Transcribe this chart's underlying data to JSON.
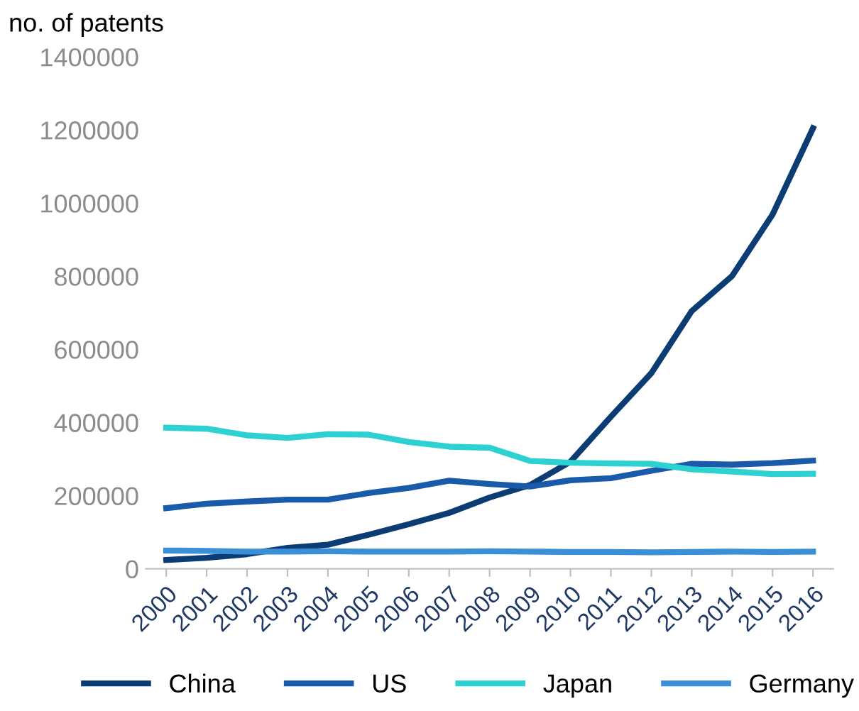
{
  "chart_data": {
    "type": "line",
    "ylabel": "no. of patents",
    "categories": [
      "2000",
      "2001",
      "2002",
      "2003",
      "2004",
      "2005",
      "2006",
      "2007",
      "2008",
      "2009",
      "2010",
      "2011",
      "2012",
      "2013",
      "2014",
      "2015",
      "2016"
    ],
    "series": [
      {
        "name": "China",
        "color": "#0b3c73",
        "values": [
          24000,
          30000,
          40000,
          57000,
          66000,
          93000,
          122000,
          153000,
          195000,
          229000,
          293000,
          416000,
          535000,
          705000,
          801000,
          969000,
          1205000
        ]
      },
      {
        "name": "US",
        "color": "#1a5aaa",
        "values": [
          166000,
          178000,
          184000,
          189000,
          189000,
          207000,
          221000,
          241000,
          232000,
          225000,
          242000,
          248000,
          268000,
          287000,
          285000,
          289000,
          296000
        ]
      },
      {
        "name": "Japan",
        "color": "#2ed1d1",
        "values": [
          386000,
          383000,
          365000,
          358000,
          368000,
          367000,
          347000,
          334000,
          331000,
          295000,
          290000,
          288000,
          287000,
          272000,
          266000,
          259000,
          260000
        ]
      },
      {
        "name": "Germany",
        "color": "#3a8fd6",
        "values": [
          50000,
          49000,
          47000,
          47000,
          48000,
          47000,
          47000,
          47000,
          48000,
          47000,
          46000,
          46000,
          45000,
          46000,
          47000,
          46000,
          47000
        ]
      }
    ],
    "ylim": [
      0,
      1400000
    ],
    "yticks": [
      0,
      200000,
      400000,
      600000,
      800000,
      1000000,
      1200000,
      1400000
    ],
    "grid": false,
    "legend": "bottom",
    "marker": "none",
    "line_style": "solid"
  }
}
